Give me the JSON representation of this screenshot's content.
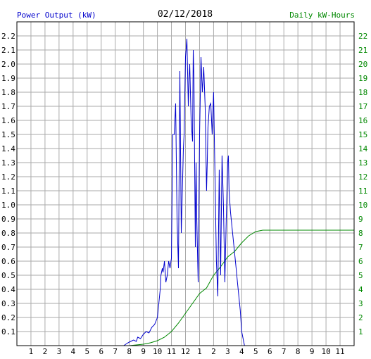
{
  "chart_data": {
    "type": "line",
    "title": "02/12/2018",
    "left_axis_label": "Power Output (kW)",
    "right_axis_label": "Daily kW-Hours",
    "x_tick_labels": [
      "1",
      "2",
      "3",
      "4",
      "5",
      "6",
      "7",
      "8",
      "9",
      "10",
      "11",
      "12",
      "1",
      "2",
      "3",
      "4",
      "5",
      "6",
      "7",
      "8",
      "9",
      "10",
      "11"
    ],
    "x_range_hours": [
      0,
      24
    ],
    "y_left_ticks": [
      "0.1",
      "0.2",
      "0.3",
      "0.4",
      "0.5",
      "0.6",
      "0.7",
      "0.8",
      "0.9",
      "1.0",
      "1.1",
      "1.2",
      "1.3",
      "1.4",
      "1.5",
      "1.6",
      "1.7",
      "1.8",
      "1.9",
      "2.0",
      "2.1",
      "2.2"
    ],
    "y_left_range": [
      0,
      2.3
    ],
    "y_right_ticks": [
      "1",
      "2",
      "3",
      "4",
      "5",
      "6",
      "7",
      "8",
      "9",
      "10",
      "11",
      "12",
      "13",
      "14",
      "15",
      "16",
      "17",
      "18",
      "19",
      "20",
      "21",
      "22"
    ],
    "y_right_range": [
      0,
      23
    ],
    "grid": true,
    "colors": {
      "power": "#0000cc",
      "energy": "#008800",
      "grid": "#aaaaaa",
      "frame": "#000000"
    },
    "series": [
      {
        "name": "Power Output (kW)",
        "axis": "left",
        "x": [
          7.6,
          7.9,
          8.1,
          8.3,
          8.5,
          8.6,
          8.8,
          9.0,
          9.2,
          9.4,
          9.6,
          9.8,
          10.0,
          10.1,
          10.2,
          10.25,
          10.35,
          10.4,
          10.5,
          10.6,
          10.7,
          10.8,
          10.9,
          11.0,
          11.05,
          11.1,
          11.2,
          11.3,
          11.4,
          11.5,
          11.6,
          11.7,
          11.8,
          11.85,
          11.9,
          12.0,
          12.1,
          12.2,
          12.25,
          12.3,
          12.4,
          12.5,
          12.55,
          12.6,
          12.7,
          12.75,
          12.8,
          12.9,
          13.0,
          13.1,
          13.2,
          13.3,
          13.4,
          13.5,
          13.55,
          13.6,
          13.7,
          13.8,
          13.9,
          14.0,
          14.1,
          14.2,
          14.3,
          14.4,
          14.5,
          14.6,
          14.7,
          14.8,
          14.9,
          15.0,
          15.05,
          15.1,
          15.2,
          15.3,
          15.35,
          15.4,
          15.5,
          15.6,
          15.7,
          15.8,
          15.9,
          16.0,
          16.2,
          16.4,
          16.6,
          16.8,
          17.0,
          17.2,
          17.4,
          17.6,
          17.8
        ],
        "values": [
          0.0,
          0.02,
          0.03,
          0.04,
          0.03,
          0.06,
          0.05,
          0.08,
          0.1,
          0.09,
          0.13,
          0.15,
          0.2,
          0.3,
          0.4,
          0.5,
          0.55,
          0.52,
          0.6,
          0.45,
          0.5,
          0.6,
          0.55,
          0.62,
          1.1,
          1.5,
          1.5,
          1.72,
          0.9,
          0.55,
          1.95,
          0.8,
          1.2,
          1.4,
          1.5,
          2.05,
          2.18,
          1.7,
          1.9,
          2.0,
          1.6,
          1.45,
          2.1,
          1.9,
          0.7,
          1.3,
          0.9,
          0.45,
          1.5,
          2.05,
          1.8,
          1.98,
          1.7,
          1.1,
          1.3,
          1.55,
          1.7,
          1.72,
          1.5,
          1.8,
          1.2,
          0.6,
          0.35,
          1.25,
          0.5,
          1.35,
          1.0,
          0.45,
          0.9,
          1.3,
          1.35,
          1.1,
          0.95,
          0.85,
          0.8,
          0.75,
          0.65,
          0.55,
          0.45,
          0.35,
          0.25,
          0.1,
          0.0,
          0.0,
          0.0,
          0.0,
          0.0,
          0.0,
          0.0,
          0.0,
          0.0
        ],
        "note": "",
        "trailing_zero_until": 24
      },
      {
        "name": "Daily kW-Hours",
        "axis": "right",
        "x": [
          0,
          8.0,
          8.5,
          9.0,
          9.5,
          10.0,
          10.5,
          11.0,
          11.5,
          12.0,
          12.5,
          13.0,
          13.5,
          14.0,
          14.5,
          15.0,
          15.5,
          16.0,
          16.5,
          17.0,
          17.5,
          18.0,
          20.0,
          22.0,
          24.0
        ],
        "values": [
          0,
          0,
          0.05,
          0.1,
          0.2,
          0.35,
          0.6,
          1.0,
          1.6,
          2.3,
          3.0,
          3.7,
          4.1,
          5.0,
          5.6,
          6.3,
          6.7,
          7.3,
          7.8,
          8.1,
          8.2,
          8.2,
          8.2,
          8.2,
          8.2
        ]
      }
    ]
  }
}
